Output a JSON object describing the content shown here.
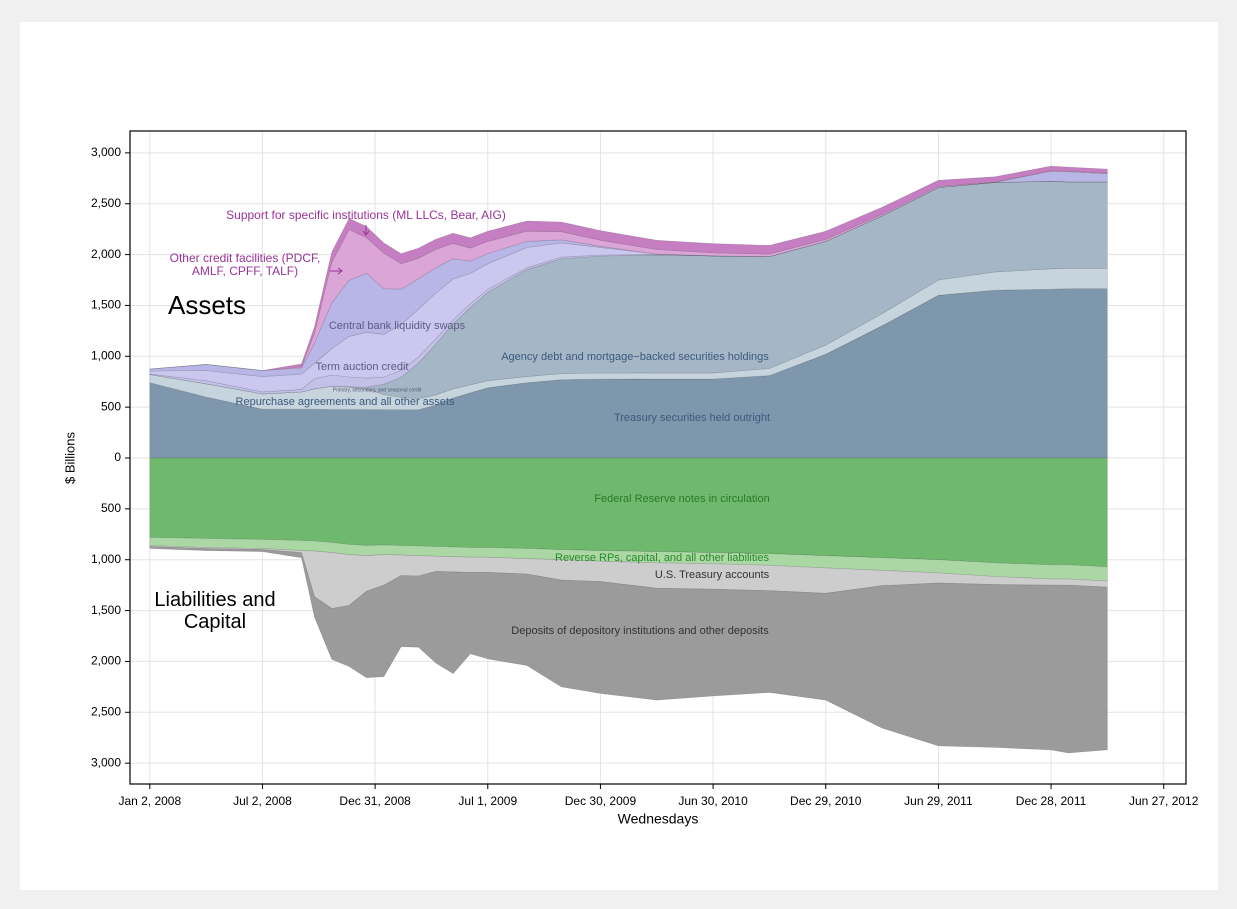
{
  "chart_data": {
    "type": "area",
    "stacked": true,
    "xlabel": "Wednesdays",
    "ylabel": "$ Billions",
    "annotations": [
      "Assets",
      "Liabilities and Capital"
    ],
    "grid": true,
    "xlim": [
      "2007-12-01",
      "2012-08-02"
    ],
    "xticks": [
      {
        "value": "2008-01-02",
        "label": "Jan 2, 2008"
      },
      {
        "value": "2008-07-02",
        "label": "Jul 2, 2008"
      },
      {
        "value": "2008-12-31",
        "label": "Dec 31, 2008"
      },
      {
        "value": "2009-07-01",
        "label": "Jul 1, 2009"
      },
      {
        "value": "2009-12-30",
        "label": "Dec 30, 2009"
      },
      {
        "value": "2010-06-30",
        "label": "Jun 30, 2010"
      },
      {
        "value": "2010-12-29",
        "label": "Dec 29, 2010"
      },
      {
        "value": "2011-06-29",
        "label": "Jun 29, 2011"
      },
      {
        "value": "2011-12-28",
        "label": "Dec 28, 2011"
      },
      {
        "value": "2012-06-27",
        "label": "Jun 27, 2012"
      }
    ],
    "ylim": [
      -3205,
      3215
    ],
    "yticks": [
      {
        "value": 3000,
        "label": "3,000"
      },
      {
        "value": 2500,
        "label": "2,500"
      },
      {
        "value": 2000,
        "label": "2,000"
      },
      {
        "value": 1500,
        "label": "1,500"
      },
      {
        "value": 1000,
        "label": "1,000"
      },
      500,
      0,
      {
        "value": -500,
        "label": "500"
      },
      {
        "value": -1000,
        "label": "1,000"
      },
      {
        "value": -1500,
        "label": "1,500"
      },
      {
        "value": -2000,
        "label": "2,000"
      },
      {
        "value": -2500,
        "label": "2,500"
      },
      {
        "value": -3000,
        "label": "3,000"
      }
    ],
    "x": [
      "2008-01-02",
      "2008-04-02",
      "2008-07-02",
      "2008-09-03",
      "2008-09-24",
      "2008-10-22",
      "2008-11-19",
      "2008-12-17",
      "2009-01-14",
      "2009-02-11",
      "2009-03-11",
      "2009-04-08",
      "2009-05-06",
      "2009-06-03",
      "2009-07-01",
      "2009-09-02",
      "2009-10-28",
      "2009-12-30",
      "2010-03-31",
      "2010-06-30",
      "2010-09-29",
      "2010-12-29",
      "2011-03-30",
      "2011-06-29",
      "2011-09-28",
      "2011-12-28",
      "2012-01-25",
      "2012-03-28"
    ],
    "series": [
      {
        "name": "Treasury securities held outright",
        "color": "#7f97ac",
        "values": [
          740,
          600,
          480,
          480,
          480,
          476,
          476,
          476,
          475,
          475,
          474,
          520,
          590,
          640,
          690,
          740,
          770,
          776,
          777,
          777,
          810,
          1020,
          1300,
          1600,
          1650,
          1660,
          1665,
          1665
        ]
      },
      {
        "name": "Repurchase agreements and all other assets",
        "color": "#c6d4dd",
        "values": [
          80,
          130,
          150,
          170,
          200,
          230,
          220,
          200,
          150,
          120,
          110,
          100,
          90,
          80,
          70,
          60,
          60,
          60,
          60,
          60,
          70,
          90,
          120,
          150,
          180,
          200,
          200,
          200
        ]
      },
      {
        "name": "Agency debt and mortgage−backed securities holdings",
        "color": "#a5b6c7",
        "values": [
          0,
          0,
          0,
          0,
          0,
          0,
          5,
          20,
          100,
          200,
          350,
          500,
          640,
          760,
          870,
          1050,
          1130,
          1150,
          1160,
          1150,
          1100,
          1020,
          960,
          910,
          880,
          860,
          850,
          850
        ]
      },
      {
        "name": "Primary, secondary, and seasonal credit",
        "color": "#c3c1e8",
        "values": [
          5,
          30,
          20,
          25,
          100,
          110,
          95,
          90,
          70,
          65,
          60,
          50,
          40,
          35,
          30,
          20,
          15,
          10,
          5,
          0,
          0,
          0,
          0,
          0,
          0,
          0,
          0,
          0
        ]
      },
      {
        "name": "Term auction credit",
        "color": "#cbc7ef",
        "values": [
          30,
          100,
          150,
          150,
          150,
          260,
          400,
          450,
          420,
          450,
          470,
          450,
          400,
          300,
          250,
          200,
          140,
          75,
          3,
          0,
          0,
          0,
          0,
          0,
          0,
          0,
          0,
          0
        ]
      },
      {
        "name": "Central bank liquidity swaps",
        "color": "#b8b5e7",
        "values": [
          20,
          60,
          60,
          60,
          200,
          450,
          550,
          580,
          450,
          350,
          300,
          250,
          200,
          120,
          100,
          60,
          30,
          10,
          0,
          1,
          0,
          0,
          0,
          0,
          0,
          100,
          100,
          80
        ]
      },
      {
        "name": "Other credit facilities (PDCF, AMLF, CPFF, TALF)",
        "color": "#dba5d7",
        "values": [
          0,
          0,
          0,
          10,
          100,
          400,
          500,
          350,
          350,
          250,
          200,
          180,
          150,
          130,
          120,
          100,
          80,
          60,
          45,
          30,
          25,
          20,
          15,
          10,
          5,
          5,
          5,
          5
        ]
      },
      {
        "name": "Support for specific institutions (ML LLCs, Bear, AIG)",
        "color": "#c67ec3",
        "values": [
          0,
          0,
          0,
          30,
          60,
          100,
          110,
          110,
          100,
          100,
          100,
          100,
          100,
          100,
          100,
          100,
          95,
          95,
          90,
          90,
          85,
          80,
          70,
          60,
          50,
          45,
          40,
          40
        ]
      },
      {
        "name": "Federal Reserve notes in circulation",
        "color": "#6fb96f",
        "values": [
          -780,
          -790,
          -800,
          -810,
          -815,
          -830,
          -850,
          -860,
          -855,
          -860,
          -865,
          -870,
          -875,
          -880,
          -880,
          -890,
          -900,
          -910,
          -920,
          -930,
          -940,
          -960,
          -980,
          -1000,
          -1030,
          -1050,
          -1050,
          -1070
        ]
      },
      {
        "name": "Reverse RPs, capital, and all other liabilities",
        "color": "#aad7a4",
        "values": [
          -80,
          -90,
          -90,
          -100,
          -100,
          -100,
          -100,
          -100,
          -95,
          -95,
          -95,
          -95,
          -95,
          -95,
          -95,
          -100,
          -100,
          -105,
          -110,
          -110,
          -115,
          -120,
          -125,
          -130,
          -135,
          -140,
          -140,
          -140
        ]
      },
      {
        "name": "U.S. Treasury accounts",
        "color": "#cdcdcd",
        "values": [
          -10,
          -10,
          -10,
          -20,
          -450,
          -550,
          -500,
          -350,
          -300,
          -200,
          -200,
          -150,
          -150,
          -150,
          -150,
          -150,
          -200,
          -200,
          -250,
          -250,
          -250,
          -250,
          -150,
          -100,
          -80,
          -60,
          -60,
          -60
        ]
      },
      {
        "name": "Deposits of depository institutions and other deposits",
        "color": "#9b9b9b",
        "values": [
          -20,
          -20,
          -20,
          -50,
          -200,
          -500,
          -600,
          -850,
          -900,
          -700,
          -700,
          -900,
          -1000,
          -800,
          -850,
          -900,
          -1050,
          -1100,
          -1100,
          -1050,
          -1000,
          -1050,
          -1400,
          -1600,
          -1600,
          -1620,
          -1650,
          -1600
        ]
      }
    ]
  }
}
